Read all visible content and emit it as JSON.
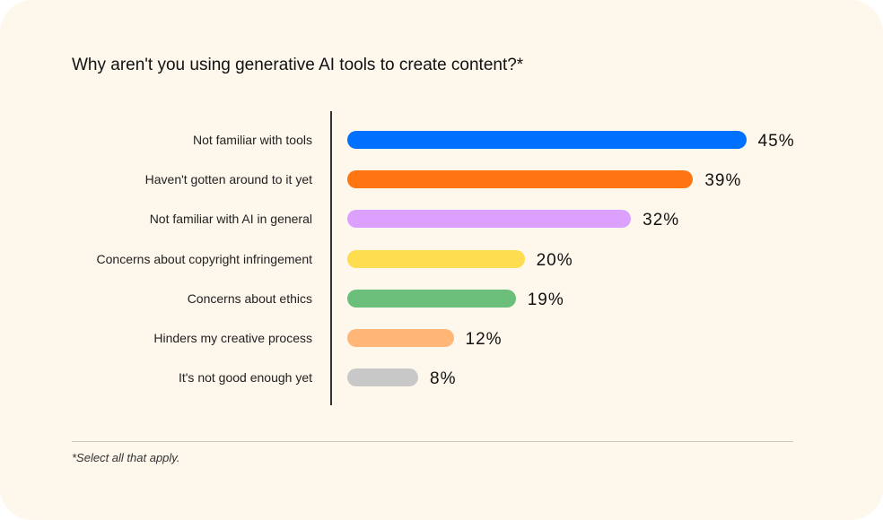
{
  "chart_data": {
    "type": "bar",
    "orientation": "horizontal",
    "title": "Why aren't you using generative AI tools to create content?*",
    "categories": [
      "Not familiar with tools",
      "Haven't gotten around to it yet",
      "Not familiar with AI in general",
      "Concerns about copyright infringement",
      "Concerns about ethics",
      "Hinders my creative process",
      "It's not good enough yet"
    ],
    "values": [
      45,
      39,
      32,
      20,
      19,
      12,
      8
    ],
    "value_labels": [
      "45%",
      "39%",
      "32%",
      "20%",
      "19%",
      "12%",
      "8%"
    ],
    "colors": [
      "#0070ff",
      "#ff7512",
      "#dca0ff",
      "#ffdd50",
      "#6bbf7b",
      "#ffb677",
      "#c8c8c8"
    ],
    "unit": "%",
    "grid": false,
    "legend": "none",
    "footnote": "*Select all that apply."
  }
}
